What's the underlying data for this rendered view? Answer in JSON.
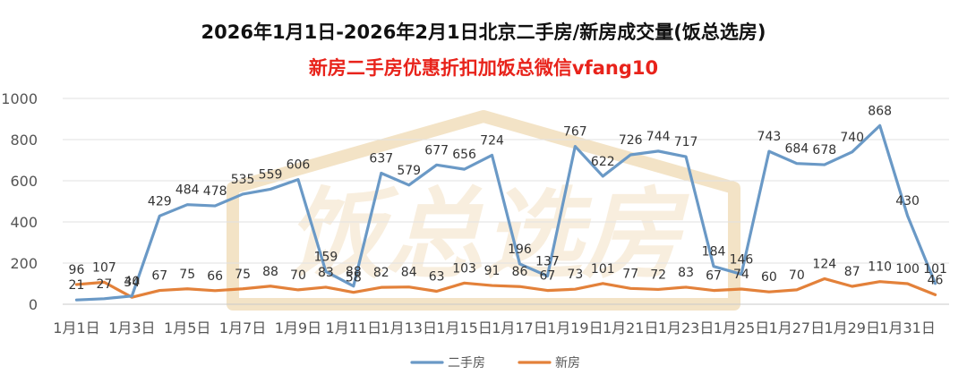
{
  "chart_data": {
    "type": "line",
    "title": "2026年1月1日-2026年2月1日北京二手房/新房成交量(饭总选房)",
    "subtitle": "新房二手房优惠折扣加饭总微信vfang10",
    "watermark": "饭总选房",
    "ylim": [
      0,
      1000
    ],
    "yticks": [
      "0",
      "200",
      "400",
      "600",
      "800",
      "1000"
    ],
    "x": [
      "1月1日",
      "1月2日",
      "1月3日",
      "1月4日",
      "1月5日",
      "1月6日",
      "1月7日",
      "1月8日",
      "1月9日",
      "1月10日",
      "1月11日",
      "1月12日",
      "1月13日",
      "1月14日",
      "1月15日",
      "1月16日",
      "1月17日",
      "1月18日",
      "1月19日",
      "1月20日",
      "1月21日",
      "1月22日",
      "1月23日",
      "1月24日",
      "1月25日",
      "1月26日",
      "1月27日",
      "1月28日",
      "1月29日",
      "1月30日",
      "1月31日",
      "2月1日"
    ],
    "xtick_labels": [
      "1月1日",
      "1月3日",
      "1月5日",
      "1月7日",
      "1月9日",
      "1月11日",
      "1月13日",
      "1月15日",
      "1月17日",
      "1月19日",
      "1月21日",
      "1月23日",
      "1月25日",
      "1月27日",
      "1月29日",
      "1月31日"
    ],
    "grid": true,
    "legend_position": "bottom",
    "series": [
      {
        "name": "二手房",
        "color": "#6a99c6",
        "values": [
          21,
          27,
          40,
          429,
          484,
          478,
          535,
          559,
          606,
          159,
          88,
          637,
          579,
          677,
          656,
          724,
          196,
          137,
          767,
          622,
          726,
          744,
          717,
          184,
          146,
          743,
          684,
          678,
          740,
          868,
          430,
          101
        ]
      },
      {
        "name": "新房",
        "color": "#e3813a",
        "values": [
          96,
          107,
          34,
          67,
          75,
          66,
          75,
          88,
          70,
          83,
          58,
          82,
          84,
          63,
          103,
          91,
          86,
          67,
          73,
          101,
          77,
          72,
          83,
          67,
          74,
          60,
          70,
          124,
          87,
          110,
          100,
          46
        ]
      }
    ]
  }
}
